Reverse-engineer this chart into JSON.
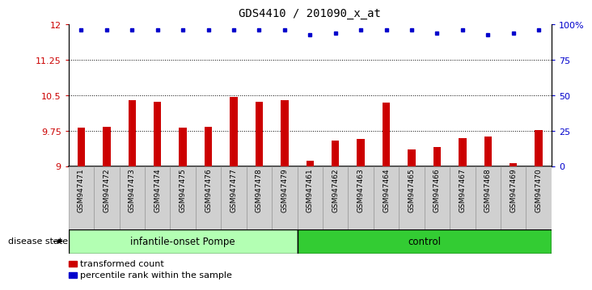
{
  "title": "GDS4410 / 201090_x_at",
  "samples": [
    "GSM947471",
    "GSM947472",
    "GSM947473",
    "GSM947474",
    "GSM947475",
    "GSM947476",
    "GSM947477",
    "GSM947478",
    "GSM947479",
    "GSM947461",
    "GSM947462",
    "GSM947463",
    "GSM947464",
    "GSM947465",
    "GSM947466",
    "GSM947467",
    "GSM947468",
    "GSM947469",
    "GSM947470"
  ],
  "bar_values": [
    9.82,
    9.84,
    10.4,
    10.37,
    9.82,
    9.84,
    10.47,
    10.37,
    10.4,
    9.12,
    9.55,
    9.57,
    10.35,
    9.35,
    9.4,
    9.6,
    9.62,
    9.06,
    9.77
  ],
  "percentile_values": [
    96,
    96,
    96,
    96,
    96,
    96,
    96,
    96,
    96,
    93,
    94,
    96,
    96,
    96,
    94,
    96,
    93,
    94,
    96
  ],
  "bar_color": "#cc0000",
  "percentile_color": "#0000cc",
  "ylim_left": [
    9.0,
    12.0
  ],
  "ylim_right": [
    0,
    100
  ],
  "yticks_left": [
    9.0,
    9.75,
    10.5,
    11.25,
    12.0
  ],
  "yticks_left_labels": [
    "9",
    "9.75",
    "10.5",
    "11.25",
    "12"
  ],
  "yticks_right": [
    0,
    25,
    50,
    75,
    100
  ],
  "yticks_right_labels": [
    "0",
    "25",
    "50",
    "75",
    "100%"
  ],
  "hlines": [
    9.75,
    10.5,
    11.25
  ],
  "group1_label": "infantile-onset Pompe",
  "group2_label": "control",
  "group1_count": 9,
  "group2_count": 10,
  "group1_color": "#b3ffb3",
  "group2_color": "#33cc33",
  "disease_state_label": "disease state",
  "legend_bar_label": "transformed count",
  "legend_pct_label": "percentile rank within the sample",
  "plot_bg_color": "#ffffff",
  "xlabel_bg_color": "#d0d0d0",
  "title_fontsize": 10,
  "tick_fontsize": 8,
  "label_fontsize": 8.5
}
